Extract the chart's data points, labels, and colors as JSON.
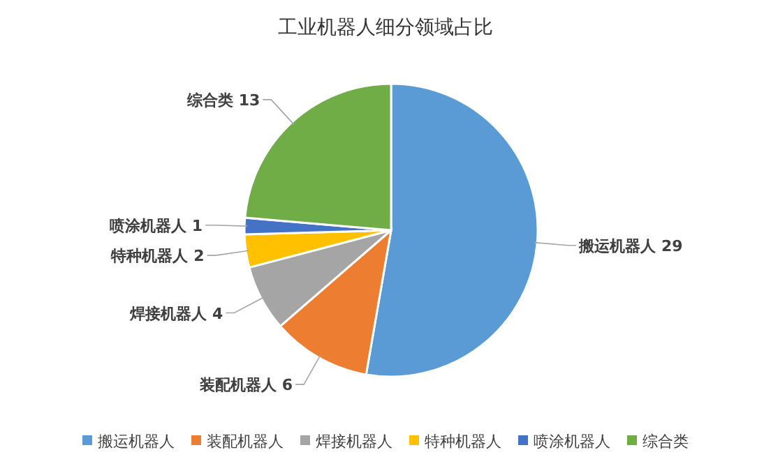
{
  "chart_data": {
    "type": "pie",
    "title": "工业机器人细分领域占比",
    "categories": [
      "搬运机器人",
      "装配机器人",
      "焊接机器人",
      "特种机器人",
      "喷涂机器人",
      "综合类"
    ],
    "values": [
      29,
      6,
      4,
      2,
      1,
      13
    ],
    "colors": [
      "#5b9bd5",
      "#ed7d31",
      "#a5a5a5",
      "#ffc000",
      "#4472c4",
      "#70ad47"
    ],
    "data_labels": true,
    "legend": "bottom"
  }
}
